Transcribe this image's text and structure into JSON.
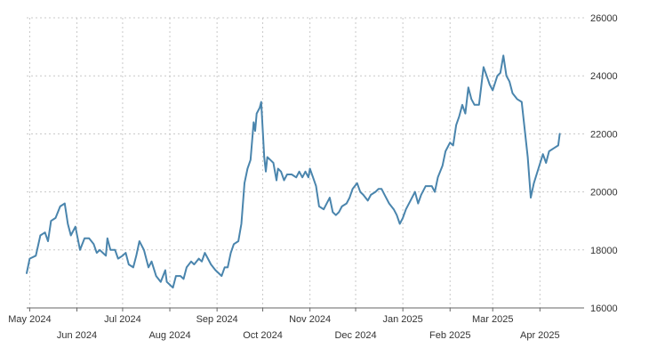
{
  "chart_data": {
    "type": "line",
    "title": "",
    "xlabel": "",
    "ylabel": "",
    "ylim": [
      16000,
      26000
    ],
    "y_ticks": [
      16000,
      18000,
      20000,
      22000,
      24000,
      26000
    ],
    "y_tick_labels": [
      "16000",
      "18000",
      "20000",
      "22000",
      "24000",
      "26000"
    ],
    "y_axis_position": "right",
    "grid": true,
    "legend": "none",
    "x_range": [
      "2024-04-29",
      "2025-04-30"
    ],
    "x_ticks": [
      {
        "date": "2024-05-01",
        "label": "May 2024"
      },
      {
        "date": "2024-06-01",
        "label": "Jun 2024"
      },
      {
        "date": "2024-07-01",
        "label": "Jul 2024"
      },
      {
        "date": "2024-08-01",
        "label": "Aug 2024"
      },
      {
        "date": "2024-09-01",
        "label": "Sep 2024"
      },
      {
        "date": "2024-10-01",
        "label": "Oct 2024"
      },
      {
        "date": "2024-11-01",
        "label": "Nov 2024"
      },
      {
        "date": "2024-12-01",
        "label": "Dec 2024"
      },
      {
        "date": "2025-01-01",
        "label": "Jan 2025"
      },
      {
        "date": "2025-02-01",
        "label": "Feb 2025"
      },
      {
        "date": "2025-03-01",
        "label": "Mar 2025"
      },
      {
        "date": "2025-04-01",
        "label": "Apr 2025"
      }
    ],
    "series": [
      {
        "color": "#4a85ad",
        "points": [
          [
            "2024-04-29",
            17200
          ],
          [
            "2024-05-01",
            17700
          ],
          [
            "2024-05-05",
            17800
          ],
          [
            "2024-05-08",
            18500
          ],
          [
            "2024-05-11",
            18600
          ],
          [
            "2024-05-13",
            18300
          ],
          [
            "2024-05-15",
            19000
          ],
          [
            "2024-05-18",
            19100
          ],
          [
            "2024-05-21",
            19500
          ],
          [
            "2024-05-24",
            19600
          ],
          [
            "2024-05-26",
            18900
          ],
          [
            "2024-05-28",
            18500
          ],
          [
            "2024-05-31",
            18800
          ],
          [
            "2024-06-03",
            18000
          ],
          [
            "2024-06-06",
            18400
          ],
          [
            "2024-06-09",
            18400
          ],
          [
            "2024-06-12",
            18200
          ],
          [
            "2024-06-14",
            17900
          ],
          [
            "2024-06-16",
            18000
          ],
          [
            "2024-06-18",
            17900
          ],
          [
            "2024-06-20",
            17800
          ],
          [
            "2024-06-21",
            18400
          ],
          [
            "2024-06-23",
            18000
          ],
          [
            "2024-06-26",
            18000
          ],
          [
            "2024-06-28",
            17700
          ],
          [
            "2024-07-01",
            17800
          ],
          [
            "2024-07-03",
            17900
          ],
          [
            "2024-07-05",
            17500
          ],
          [
            "2024-07-08",
            17400
          ],
          [
            "2024-07-10",
            17800
          ],
          [
            "2024-07-12",
            18300
          ],
          [
            "2024-07-15",
            18000
          ],
          [
            "2024-07-18",
            17400
          ],
          [
            "2024-07-20",
            17600
          ],
          [
            "2024-07-23",
            17100
          ],
          [
            "2024-07-26",
            16900
          ],
          [
            "2024-07-29",
            17300
          ],
          [
            "2024-07-30",
            16900
          ],
          [
            "2024-08-01",
            16800
          ],
          [
            "2024-08-03",
            16700
          ],
          [
            "2024-08-05",
            17100
          ],
          [
            "2024-08-08",
            17100
          ],
          [
            "2024-08-10",
            17000
          ],
          [
            "2024-08-12",
            17400
          ],
          [
            "2024-08-15",
            17600
          ],
          [
            "2024-08-17",
            17500
          ],
          [
            "2024-08-20",
            17700
          ],
          [
            "2024-08-22",
            17600
          ],
          [
            "2024-08-24",
            17900
          ],
          [
            "2024-08-26",
            17700
          ],
          [
            "2024-08-28",
            17500
          ],
          [
            "2024-08-31",
            17300
          ],
          [
            "2024-09-02",
            17200
          ],
          [
            "2024-09-04",
            17100
          ],
          [
            "2024-09-06",
            17400
          ],
          [
            "2024-09-08",
            17400
          ],
          [
            "2024-09-10",
            17900
          ],
          [
            "2024-09-12",
            18200
          ],
          [
            "2024-09-15",
            18300
          ],
          [
            "2024-09-17",
            18900
          ],
          [
            "2024-09-19",
            20300
          ],
          [
            "2024-09-21",
            20800
          ],
          [
            "2024-09-23",
            21100
          ],
          [
            "2024-09-25",
            22400
          ],
          [
            "2024-09-26",
            22100
          ],
          [
            "2024-09-27",
            22700
          ],
          [
            "2024-09-29",
            22900
          ],
          [
            "2024-09-30",
            23100
          ],
          [
            "2024-10-02",
            21200
          ],
          [
            "2024-10-03",
            20700
          ],
          [
            "2024-10-04",
            21200
          ],
          [
            "2024-10-06",
            21100
          ],
          [
            "2024-10-08",
            21000
          ],
          [
            "2024-10-10",
            20400
          ],
          [
            "2024-10-11",
            20800
          ],
          [
            "2024-10-13",
            20700
          ],
          [
            "2024-10-15",
            20400
          ],
          [
            "2024-10-17",
            20600
          ],
          [
            "2024-10-20",
            20600
          ],
          [
            "2024-10-23",
            20500
          ],
          [
            "2024-10-25",
            20700
          ],
          [
            "2024-10-27",
            20500
          ],
          [
            "2024-10-29",
            20700
          ],
          [
            "2024-10-31",
            20500
          ],
          [
            "2024-11-01",
            20800
          ],
          [
            "2024-11-03",
            20500
          ],
          [
            "2024-11-05",
            20200
          ],
          [
            "2024-11-07",
            19500
          ],
          [
            "2024-11-10",
            19400
          ],
          [
            "2024-11-12",
            19600
          ],
          [
            "2024-11-14",
            19800
          ],
          [
            "2024-11-16",
            19300
          ],
          [
            "2024-11-18",
            19200
          ],
          [
            "2024-11-20",
            19300
          ],
          [
            "2024-11-22",
            19500
          ],
          [
            "2024-11-25",
            19600
          ],
          [
            "2024-11-27",
            19800
          ],
          [
            "2024-11-29",
            20100
          ],
          [
            "2024-12-02",
            20300
          ],
          [
            "2024-12-04",
            20000
          ],
          [
            "2024-12-06",
            19900
          ],
          [
            "2024-12-09",
            19700
          ],
          [
            "2024-12-11",
            19900
          ],
          [
            "2024-12-14",
            20000
          ],
          [
            "2024-12-16",
            20100
          ],
          [
            "2024-12-18",
            20100
          ],
          [
            "2024-12-20",
            19900
          ],
          [
            "2024-12-23",
            19600
          ],
          [
            "2024-12-26",
            19400
          ],
          [
            "2024-12-28",
            19200
          ],
          [
            "2024-12-30",
            18900
          ],
          [
            "2025-01-01",
            19100
          ],
          [
            "2025-01-03",
            19400
          ],
          [
            "2025-01-06",
            19700
          ],
          [
            "2025-01-09",
            20000
          ],
          [
            "2025-01-11",
            19600
          ],
          [
            "2025-01-13",
            19900
          ],
          [
            "2025-01-16",
            20200
          ],
          [
            "2025-01-20",
            20200
          ],
          [
            "2025-01-22",
            20000
          ],
          [
            "2025-01-24",
            20500
          ],
          [
            "2025-01-27",
            20900
          ],
          [
            "2025-01-29",
            21400
          ],
          [
            "2025-02-01",
            21700
          ],
          [
            "2025-02-03",
            21600
          ],
          [
            "2025-02-05",
            22300
          ],
          [
            "2025-02-07",
            22600
          ],
          [
            "2025-02-09",
            23000
          ],
          [
            "2025-02-11",
            22700
          ],
          [
            "2025-02-13",
            23600
          ],
          [
            "2025-02-15",
            23200
          ],
          [
            "2025-02-17",
            23000
          ],
          [
            "2025-02-20",
            23000
          ],
          [
            "2025-02-23",
            24300
          ],
          [
            "2025-02-25",
            24000
          ],
          [
            "2025-02-27",
            23700
          ],
          [
            "2025-03-01",
            23500
          ],
          [
            "2025-03-04",
            24000
          ],
          [
            "2025-03-06",
            24100
          ],
          [
            "2025-03-08",
            24700
          ],
          [
            "2025-03-10",
            24000
          ],
          [
            "2025-03-12",
            23800
          ],
          [
            "2025-03-14",
            23400
          ],
          [
            "2025-03-17",
            23200
          ],
          [
            "2025-03-20",
            23100
          ],
          [
            "2025-03-24",
            21200
          ],
          [
            "2025-03-26",
            19800
          ],
          [
            "2025-03-28",
            20300
          ],
          [
            "2025-03-31",
            20800
          ],
          [
            "2025-04-03",
            21300
          ],
          [
            "2025-04-05",
            21000
          ],
          [
            "2025-04-07",
            21400
          ],
          [
            "2025-04-10",
            21500
          ],
          [
            "2025-04-13",
            21600
          ],
          [
            "2025-04-14",
            22000
          ]
        ]
      }
    ]
  }
}
